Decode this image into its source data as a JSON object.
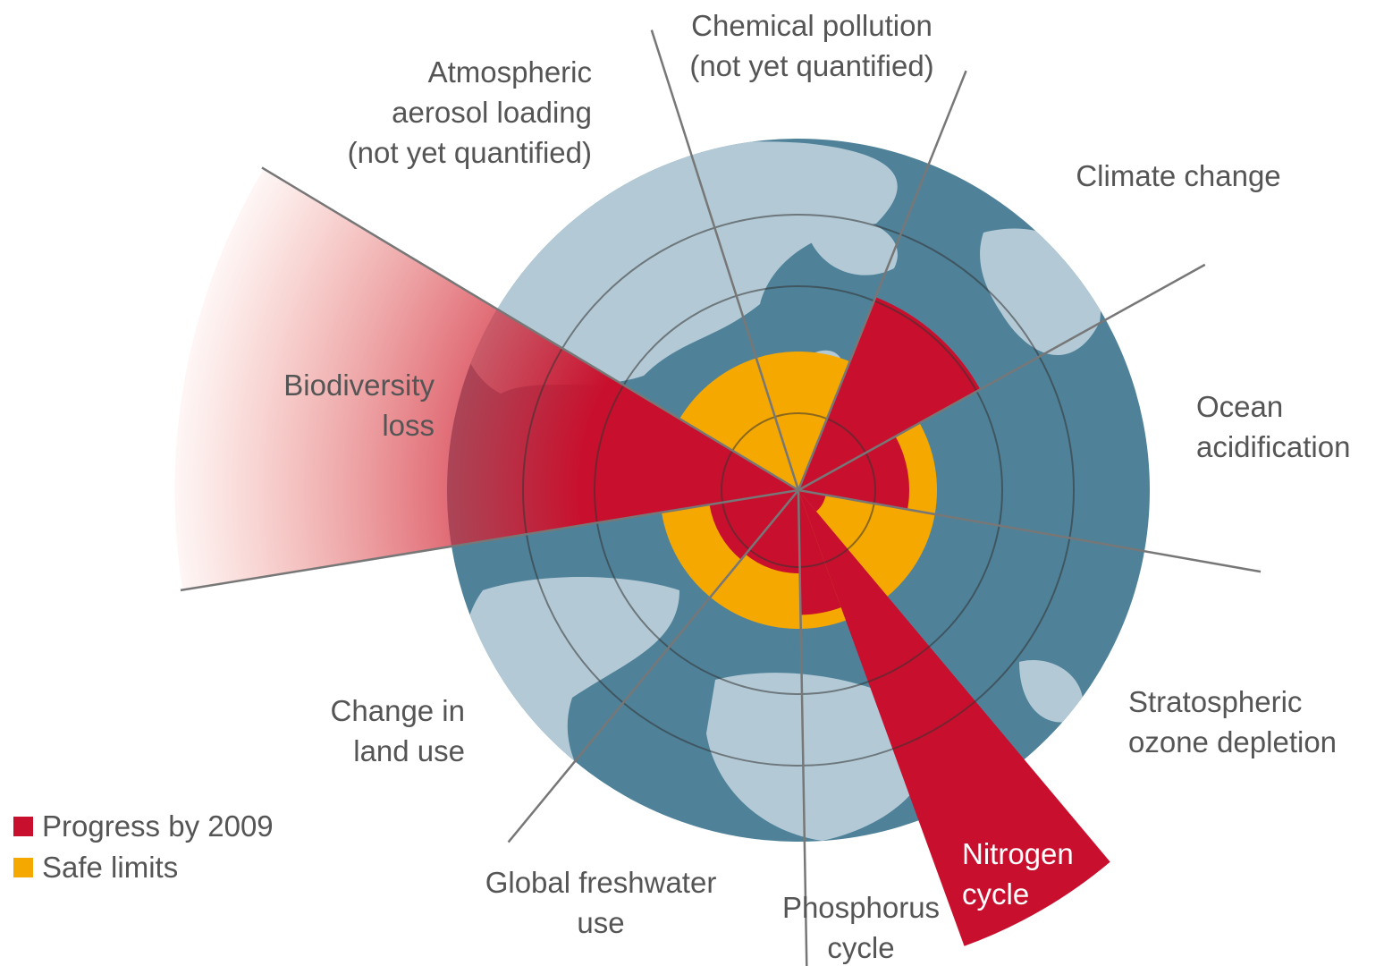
{
  "chart_data": {
    "type": "polar",
    "categories": [
      "Chemical pollution\n(not yet quantified)",
      "Climate change",
      "Ocean\nacidification",
      "Stratospheric\nozone depletion",
      "Nitrogen\ncycle",
      "Phosphorus\ncycle",
      "Global freshwater\nuse",
      "Change in\nland use",
      "Biodiversity\nloss",
      "Atmospheric\naerosol loading\n(not yet quantified)"
    ],
    "series": [
      {
        "name": "Progress by 2009",
        "color": "#c8102e",
        "values": [
          null,
          1.5,
          0.8,
          0.2,
          3.5,
          0.9,
          0.6,
          0.65,
          4.5,
          null
        ]
      },
      {
        "name": "Safe limits",
        "color": "#f5a800",
        "values": [
          1,
          1,
          1,
          1,
          1,
          1,
          1,
          1,
          1,
          1
        ]
      }
    ]
  }
}
